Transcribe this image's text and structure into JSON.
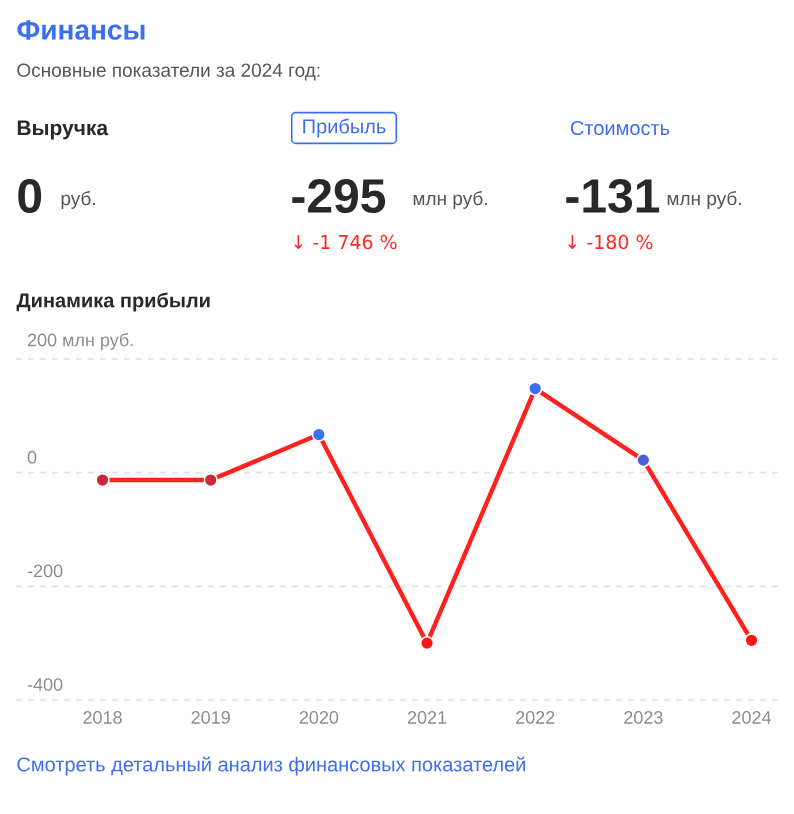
{
  "chart_data": {
    "type": "line",
    "title": "Финансы",
    "subtitle": "Основные показатели за 2024 год:",
    "annotations": [
      "Выручка",
      "0",
      "руб.",
      "Прибыль",
      "-295",
      "млн руб.",
      "↓ -1 746 %",
      "Стоимость",
      "-131",
      "млн руб.",
      "↓ -180 %",
      "Динамика прибыли",
      "Смотреть детальный анализ финансовых показателей"
    ],
    "categories": [
      "2018",
      "2019",
      "2020",
      "2021",
      "2022",
      "2023",
      "2024"
    ],
    "series": [
      {
        "color": "#ff2020",
        "values": [
          -13,
          -13,
          67,
          -300,
          148,
          22,
          -295
        ],
        "colors": [
          "#c8283c",
          "#c8283c",
          "#3b6ef0",
          "#ff1414",
          "#3b6ef0",
          "#4a5fd8",
          "#ff1414"
        ]
      }
    ],
    "ylim": [
      -400,
      200
    ],
    "yticks": [
      -400,
      -200,
      0,
      {
        "value": 200,
        "label": "200 млн руб."
      }
    ],
    "grid": "y",
    "marker": "circle",
    "line_style": "solid"
  }
}
